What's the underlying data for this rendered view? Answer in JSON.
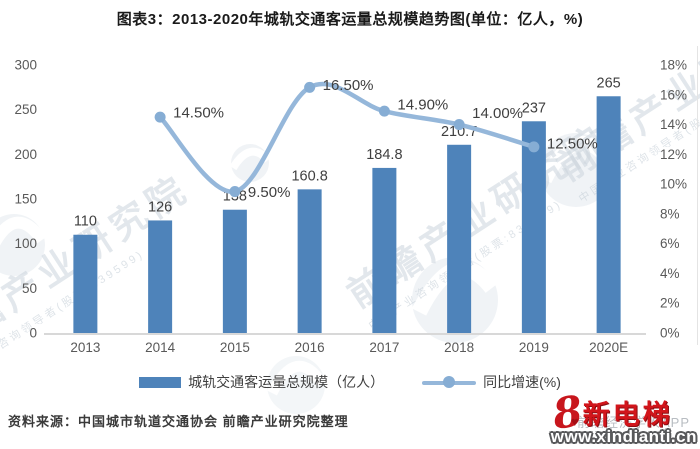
{
  "title": "图表3：2013-2020年城轨交通客运量总规模趋势图(单位：亿人，%)",
  "chart_data": {
    "type": "bar",
    "combo": "bar+line",
    "title": "图表3：2013-2020年城轨交通客运量总规模趋势图(单位：亿人，%)",
    "categories": [
      "2013",
      "2014",
      "2015",
      "2016",
      "2017",
      "2018",
      "2019",
      "2020E"
    ],
    "series": [
      {
        "name": "城轨交通客运量总规模（亿人）",
        "type": "bar",
        "axis": "left",
        "values": [
          110,
          126,
          138,
          160.8,
          184.8,
          210.7,
          237,
          265
        ],
        "labels": [
          "110",
          "126",
          "138",
          "160.8",
          "184.8",
          "210.7",
          "237",
          "265"
        ],
        "color": "#4e83ba"
      },
      {
        "name": "同比增速(%)",
        "type": "line",
        "axis": "right",
        "start_index": 1,
        "values": [
          14.5,
          9.5,
          16.5,
          14.9,
          14.0,
          12.5
        ],
        "labels": [
          "14.50%",
          "9.50%",
          "16.50%",
          "14.90%",
          "14.00%",
          "12.50%"
        ],
        "color": "#95b7da",
        "marker_color": "#86add4",
        "label_dy": [
          -5,
          0,
          -3,
          -7,
          -12,
          -4
        ]
      }
    ],
    "left_axis": {
      "min": 0,
      "max": 300,
      "step": 50,
      "ticks": [
        "0",
        "50",
        "100",
        "150",
        "200",
        "250",
        "300"
      ]
    },
    "right_axis": {
      "min": 0,
      "max": 18,
      "step": 2,
      "ticks": [
        "0%",
        "2%",
        "4%",
        "6%",
        "8%",
        "10%",
        "12%",
        "14%",
        "16%",
        "18%"
      ]
    },
    "grid": false,
    "legend_position": "bottom",
    "label_color": "#3f3f3f",
    "axis_text_color": "#595959",
    "baseline_color": "#d8d8d8"
  },
  "legend": {
    "items": [
      {
        "label": "城轨交通客运量总规模（亿人）",
        "swatch": "bar"
      },
      {
        "label": "同比增速(%)",
        "swatch": "line"
      }
    ]
  },
  "footer": {
    "source": "资料来源：中国城市轨道交通协会 前瞻产业研究院整理"
  },
  "logo": {
    "glyph": "8",
    "heart": "♥",
    "brand": "新电梯",
    "url": "www.xindianti.cn",
    "brand_color": "#d2151b"
  },
  "watermark": {
    "text": "前瞻产业研究院",
    "subtext": "中国产业咨询领导者(股票:839599)",
    "footer_text": "前瞻经济学人APP"
  }
}
